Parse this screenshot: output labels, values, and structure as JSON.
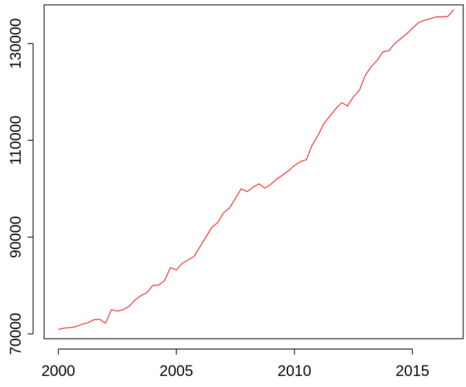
{
  "chart_data": {
    "type": "line",
    "title": "",
    "xlabel": "",
    "ylabel": "",
    "xlim": [
      1999.4,
      2017.15
    ],
    "ylim": [
      69000,
      138000
    ],
    "x_ticks": [
      2000,
      2005,
      2010,
      2015
    ],
    "x_tick_labels": [
      "2000",
      "2005",
      "2010",
      "2015"
    ],
    "y_ticks": [
      70000,
      90000,
      110000,
      130000
    ],
    "y_tick_labels": [
      "70000",
      "90000",
      "110000",
      "130000"
    ],
    "grid": false,
    "legend": "none",
    "series": [
      {
        "color": "#e8312f",
        "x": [
          2000.0,
          2000.25,
          2000.5,
          2000.75,
          2001.0,
          2001.25,
          2001.5,
          2001.75,
          2002.0,
          2002.25,
          2002.5,
          2002.75,
          2003.0,
          2003.25,
          2003.5,
          2003.75,
          2004.0,
          2004.25,
          2004.5,
          2004.75,
          2005.0,
          2005.25,
          2005.5,
          2005.75,
          2006.0,
          2006.25,
          2006.5,
          2006.75,
          2007.0,
          2007.25,
          2007.5,
          2007.75,
          2008.0,
          2008.25,
          2008.5,
          2008.75,
          2009.0,
          2009.25,
          2009.5,
          2009.75,
          2010.0,
          2010.25,
          2010.5,
          2010.75,
          2011.0,
          2011.25,
          2011.5,
          2011.75,
          2012.0,
          2012.25,
          2012.5,
          2012.75,
          2013.0,
          2013.25,
          2013.5,
          2013.75,
          2014.0,
          2014.25,
          2014.5,
          2014.75,
          2015.0,
          2015.25,
          2015.5,
          2015.75,
          2016.0,
          2016.25,
          2016.5,
          2016.75
        ],
        "values": [
          70900,
          71200,
          71300,
          71500,
          72000,
          72300,
          72900,
          73000,
          72200,
          75000,
          74700,
          75000,
          75700,
          77000,
          77900,
          78500,
          80000,
          80100,
          81000,
          83700,
          83200,
          84600,
          85300,
          86000,
          88000,
          90000,
          92000,
          93000,
          95000,
          96000,
          98000,
          100000,
          99400,
          100300,
          101000,
          100100,
          100900,
          102000,
          102800,
          103700,
          104800,
          105600,
          106000,
          109000,
          111000,
          113500,
          115000,
          116500,
          117800,
          117100,
          119000,
          120300,
          123400,
          125200,
          126500,
          128300,
          128500,
          130000,
          131000,
          132000,
          133200,
          134300,
          134800,
          135100,
          135500,
          135500,
          135600,
          137000
        ]
      }
    ]
  }
}
